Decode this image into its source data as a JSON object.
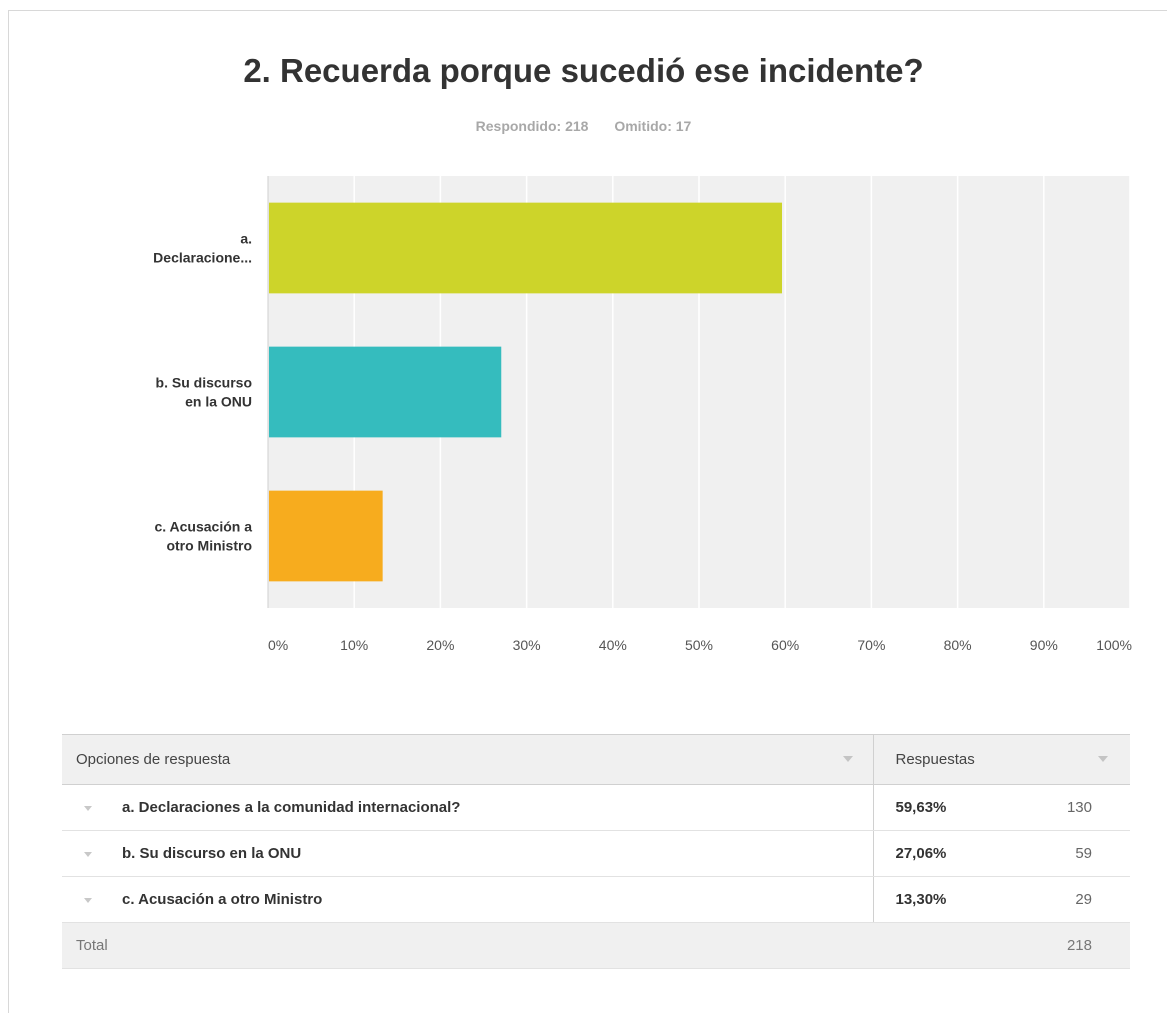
{
  "question": {
    "title": "2. Recuerda porque sucedió ese incidente?",
    "answered": "Respondido: 218",
    "skipped": "Omitido: 17"
  },
  "chart_data": {
    "type": "bar",
    "orientation": "horizontal",
    "categories": [
      [
        "a.",
        "Declaracione..."
      ],
      [
        "b. Su discurso",
        "en la ONU"
      ],
      [
        "c. Acusación a",
        "otro Ministro"
      ]
    ],
    "values": [
      59.63,
      27.06,
      13.3
    ],
    "colors": [
      "#cdd42a",
      "#35bcbe",
      "#f7ac1e"
    ],
    "xlim": [
      0,
      100
    ],
    "xticks": [
      "0%",
      "10%",
      "20%",
      "30%",
      "40%",
      "50%",
      "60%",
      "70%",
      "80%",
      "90%",
      "100%"
    ],
    "grid": true,
    "plot_background": "#f0f0f0"
  },
  "table": {
    "headers": {
      "options": "Opciones de respuesta",
      "responses": "Respuestas"
    },
    "rows": [
      {
        "option": "a. Declaraciones a la comunidad internacional?",
        "percent": "59,63%",
        "count": "130"
      },
      {
        "option": "b. Su discurso en la ONU",
        "percent": "27,06%",
        "count": "59"
      },
      {
        "option": "c. Acusación a otro Ministro",
        "percent": "13,30%",
        "count": "29"
      }
    ],
    "total_label": "Total",
    "total_count": "218"
  }
}
